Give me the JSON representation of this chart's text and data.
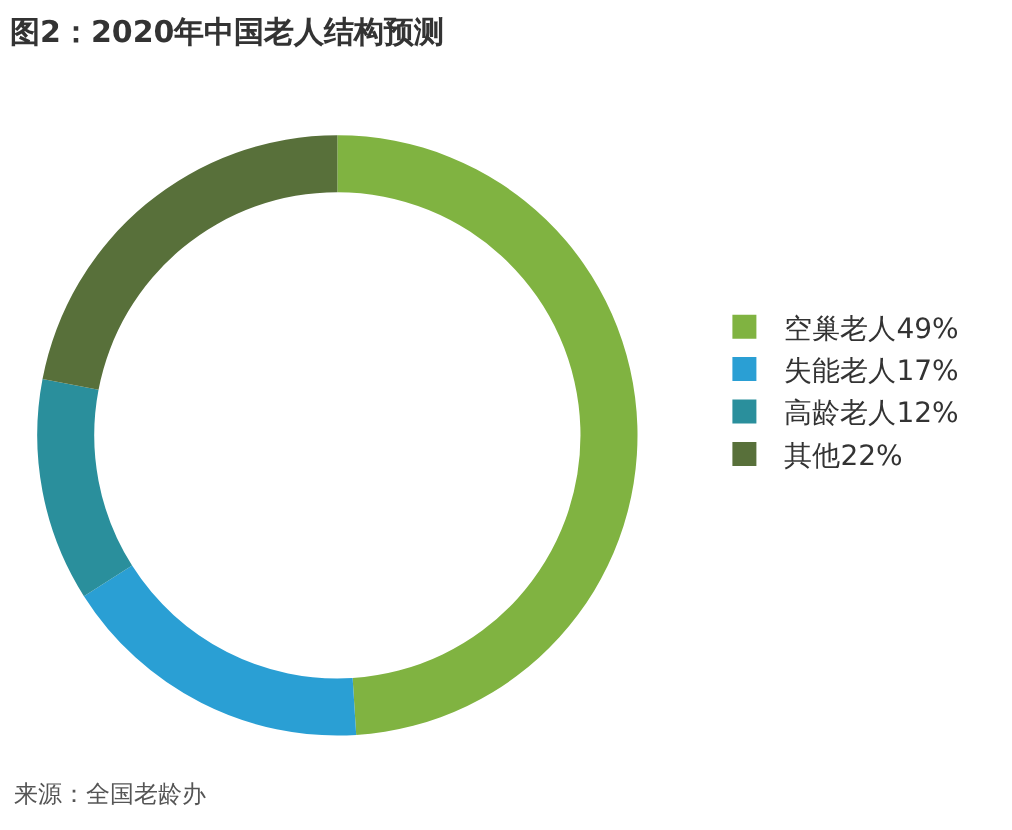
{
  "chart_data": {
    "type": "donut",
    "title": "图2：2020年中国老人结构预测",
    "categories": [
      "空巢老人49%",
      "失能老人17%",
      "高龄老人12%",
      "其他22%"
    ],
    "values": [
      49,
      17,
      12,
      22
    ],
    "colors": [
      "#80b341",
      "#2a9fd4",
      "#2a8f9c",
      "#58703a"
    ],
    "legend": "right",
    "annotations": [
      "来源：全国老龄办"
    ]
  }
}
